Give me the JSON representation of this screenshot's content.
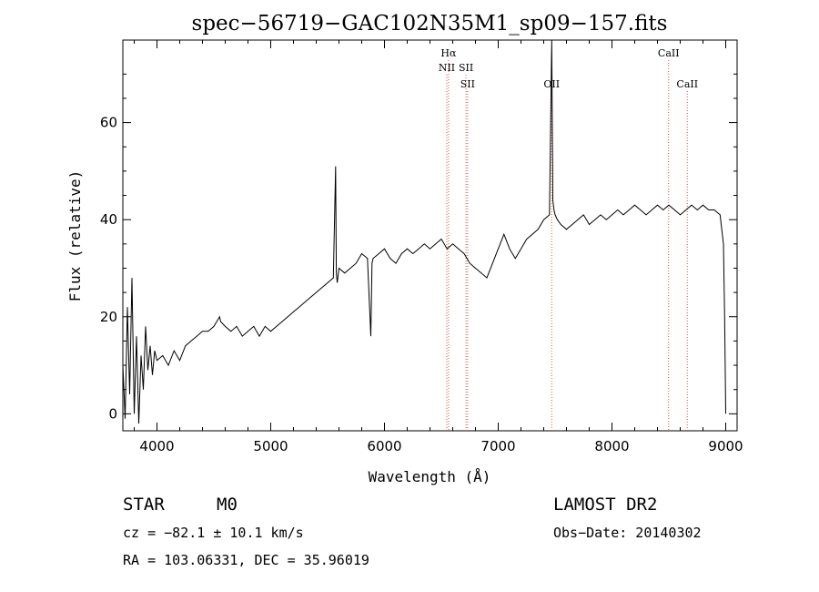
{
  "chart_data": {
    "type": "line",
    "title": "spec−56719−GAC102N35M1_sp09−157.fits",
    "xlabel": "Wavelength (Å)",
    "ylabel": "Flux (relative)",
    "xlim": [
      3700,
      9100
    ],
    "ylim": [
      -3.5,
      77
    ],
    "x_ticks": [
      4000,
      5000,
      6000,
      7000,
      8000,
      9000
    ],
    "y_ticks": [
      0,
      20,
      40,
      60
    ],
    "grid": false,
    "legend": "none",
    "spectral_lines": [
      {
        "name": "Hα",
        "wavelength": 6563,
        "row": 0
      },
      {
        "name": "NII",
        "wavelength": 6548,
        "row": 1
      },
      {
        "name": "SII",
        "wavelength": 6717,
        "row": 1
      },
      {
        "name": "SII",
        "wavelength": 6731,
        "row": 2
      },
      {
        "name": "OII",
        "wavelength": 7470,
        "row": 2
      },
      {
        "name": "CaII",
        "wavelength": 8498,
        "row": 0
      },
      {
        "name": "CaII",
        "wavelength": 8662,
        "row": 2
      }
    ],
    "series": [
      {
        "x": [
          3700,
          3720,
          3740,
          3760,
          3780,
          3800,
          3820,
          3840,
          3860,
          3880,
          3900,
          3920,
          3940,
          3960,
          3980,
          4000,
          4050,
          4100,
          4150,
          4200,
          4250,
          4300,
          4350,
          4400,
          4450,
          4500,
          4550,
          4560,
          4600,
          4650,
          4700,
          4750,
          4800,
          4850,
          4900,
          4950,
          5000,
          5050,
          5100,
          5150,
          5200,
          5250,
          5300,
          5350,
          5400,
          5450,
          5500,
          5550,
          5570,
          5577,
          5585,
          5600,
          5650,
          5700,
          5750,
          5800,
          5850,
          5880,
          5890,
          5900,
          5950,
          6000,
          6050,
          6100,
          6150,
          6200,
          6250,
          6300,
          6350,
          6400,
          6450,
          6500,
          6550,
          6600,
          6650,
          6700,
          6750,
          6800,
          6850,
          6900,
          6950,
          7000,
          7050,
          7100,
          7150,
          7200,
          7250,
          7300,
          7350,
          7400,
          7450,
          7470,
          7480,
          7490,
          7500,
          7520,
          7550,
          7600,
          7650,
          7700,
          7750,
          7800,
          7850,
          7900,
          7950,
          8000,
          8050,
          8100,
          8150,
          8200,
          8250,
          8300,
          8350,
          8400,
          8450,
          8500,
          8550,
          8600,
          8650,
          8700,
          8750,
          8800,
          8850,
          8900,
          8950,
          8980,
          8990,
          9000
        ],
        "y": [
          10,
          -1,
          22,
          4,
          28,
          0,
          16,
          -2,
          12,
          5,
          18,
          9,
          14,
          8,
          13,
          11,
          12,
          10,
          13,
          11,
          14,
          15,
          16,
          17,
          17,
          18,
          20,
          19,
          18,
          17,
          18,
          16,
          17,
          18,
          16,
          18,
          17,
          18,
          19,
          20,
          21,
          22,
          23,
          24,
          25,
          26,
          27,
          28,
          51,
          29,
          27,
          30,
          29,
          30,
          31,
          33,
          32,
          16,
          31,
          32,
          33,
          34,
          32,
          31,
          33,
          34,
          33,
          34,
          35,
          34,
          35,
          36,
          34,
          35,
          34,
          33,
          31,
          30,
          29,
          28,
          31,
          34,
          37,
          34,
          32,
          34,
          36,
          37,
          38,
          40,
          41,
          77,
          44,
          42,
          41,
          40,
          39,
          38,
          39,
          40,
          41,
          39,
          40,
          41,
          40,
          41,
          42,
          41,
          42,
          43,
          42,
          41,
          42,
          43,
          42,
          43,
          42,
          41,
          42,
          43,
          42,
          43,
          42,
          42,
          41,
          35,
          20,
          0
        ]
      }
    ]
  },
  "info": {
    "object_class": "STAR",
    "subclass": "M0",
    "survey": "LAMOST DR2",
    "redshift_line": "cz = −82.1 ± 10.1 km/s",
    "obs_date": "Obs−Date: 20140302",
    "coords": "RA = 103.06331, DEC =  35.96019"
  }
}
